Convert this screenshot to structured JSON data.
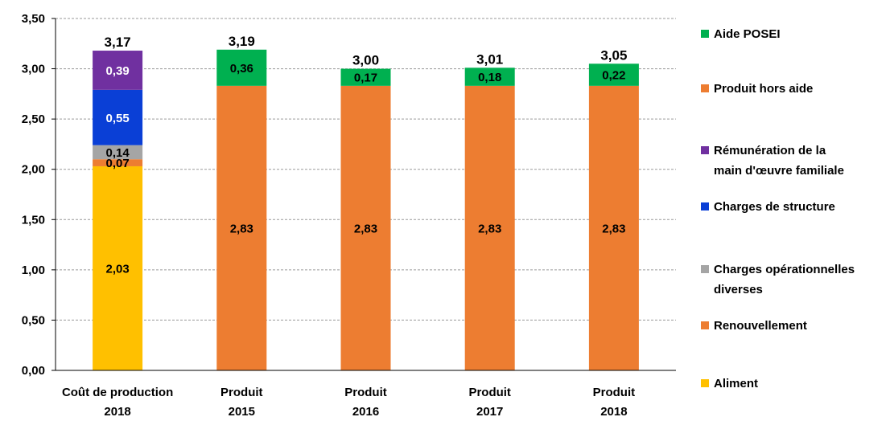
{
  "chart_data": {
    "type": "bar",
    "stacked": true,
    "ylim": [
      0,
      3.5
    ],
    "y_ticks": [
      "0,00",
      "0,50",
      "1,00",
      "1,50",
      "2,00",
      "2,50",
      "3,00",
      "3,50"
    ],
    "y_tick_values": [
      0,
      0.5,
      1,
      1.5,
      2,
      2.5,
      3,
      3.5
    ],
    "grid": "horizontal-dashed",
    "legend_position": "right",
    "categories": [
      [
        "Coût de production",
        "2018"
      ],
      [
        "Produit",
        "2015"
      ],
      [
        "Produit",
        "2016"
      ],
      [
        "Produit",
        "2017"
      ],
      [
        "Produit",
        "2018"
      ]
    ],
    "totals": [
      "3,17",
      "3,19",
      "3,00",
      "3,01",
      "3,05"
    ],
    "series": [
      {
        "name": "Aliment",
        "color": "#FFC000",
        "label_color": "#000000",
        "values": [
          2.03,
          0,
          0,
          0,
          0
        ],
        "labels": [
          "2,03",
          "",
          "",
          "",
          ""
        ]
      },
      {
        "name": "Renouvellement",
        "color": "#ED7D31",
        "label_color": "#000000",
        "values": [
          0.07,
          0,
          0,
          0,
          0
        ],
        "labels": [
          "0,07",
          "",
          "",
          "",
          ""
        ]
      },
      {
        "name": "Charges opérationnelles diverses",
        "color": "#A5A5A5",
        "label_color": "#000000",
        "values": [
          0.14,
          0,
          0,
          0,
          0
        ],
        "labels": [
          "0,14",
          "",
          "",
          "",
          ""
        ]
      },
      {
        "name": "Charges de structure",
        "color": "#0A3FD6",
        "label_color": "#FFFFFF",
        "values": [
          0.55,
          0,
          0,
          0,
          0
        ],
        "labels": [
          "0,55",
          "",
          "",
          "",
          ""
        ]
      },
      {
        "name": "Rémunération de la main d'œuvre familiale",
        "color": "#7030A0",
        "label_color": "#FFFFFF",
        "values": [
          0.39,
          0,
          0,
          0,
          0
        ],
        "labels": [
          "0,39",
          "",
          "",
          "",
          ""
        ]
      },
      {
        "name": "Produit hors aide",
        "color": "#ED7D31",
        "label_color": "#000000",
        "values": [
          0,
          2.83,
          2.83,
          2.83,
          2.83
        ],
        "labels": [
          "",
          "2,83",
          "2,83",
          "2,83",
          "2,83"
        ]
      },
      {
        "name": "Aide POSEI",
        "color": "#00B050",
        "label_color": "#000000",
        "values": [
          0,
          0.36,
          0.17,
          0.18,
          0.22
        ],
        "labels": [
          "",
          "0,36",
          "0,17",
          "0,18",
          "0,22"
        ]
      }
    ],
    "legend": [
      {
        "lines": [
          "Aide POSEI"
        ],
        "color": "#00B050"
      },
      {
        "lines": [
          "Produit hors aide"
        ],
        "color": "#ED7D31"
      },
      {
        "lines": [
          "Rémunération de la",
          "main d'œuvre familiale"
        ],
        "color": "#7030A0"
      },
      {
        "lines": [
          "Charges de structure"
        ],
        "color": "#0A3FD6"
      },
      {
        "lines": [
          "Charges opérationnelles",
          "diverses"
        ],
        "color": "#A5A5A5"
      },
      {
        "lines": [
          "Renouvellement"
        ],
        "color": "#ED7D31"
      },
      {
        "lines": [
          "Aliment"
        ],
        "color": "#FFC000"
      }
    ]
  }
}
